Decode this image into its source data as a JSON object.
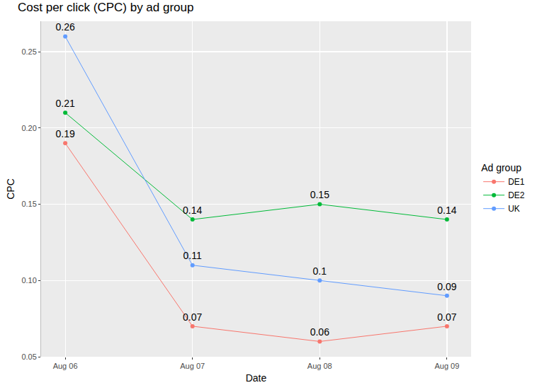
{
  "chart_data": {
    "type": "line",
    "title": "Cost per click (CPC) by ad group",
    "x_label": "Date",
    "y_label": "CPC",
    "legend_title": "Ad group",
    "categories": [
      "Aug 06",
      "Aug 07",
      "Aug 08",
      "Aug 09"
    ],
    "series": [
      {
        "name": "DE1",
        "color": "#F8766D",
        "values": [
          0.19,
          0.07,
          0.06,
          0.07
        ]
      },
      {
        "name": "DE2",
        "color": "#00BA38",
        "values": [
          0.21,
          0.14,
          0.15,
          0.14
        ]
      },
      {
        "name": "UK",
        "color": "#619CFF",
        "values": [
          0.26,
          0.11,
          0.1,
          0.09
        ]
      }
    ],
    "ylim": [
      0.05,
      0.27
    ],
    "yticks": [
      0.05,
      {
        "value": 0.1,
        "label": "0.10"
      },
      0.15,
      {
        "value": 0.2,
        "label": "0.20"
      },
      0.25
    ],
    "grid": true,
    "legend": "right",
    "data_labels": true,
    "marker": "circle",
    "line_style": "solid"
  }
}
